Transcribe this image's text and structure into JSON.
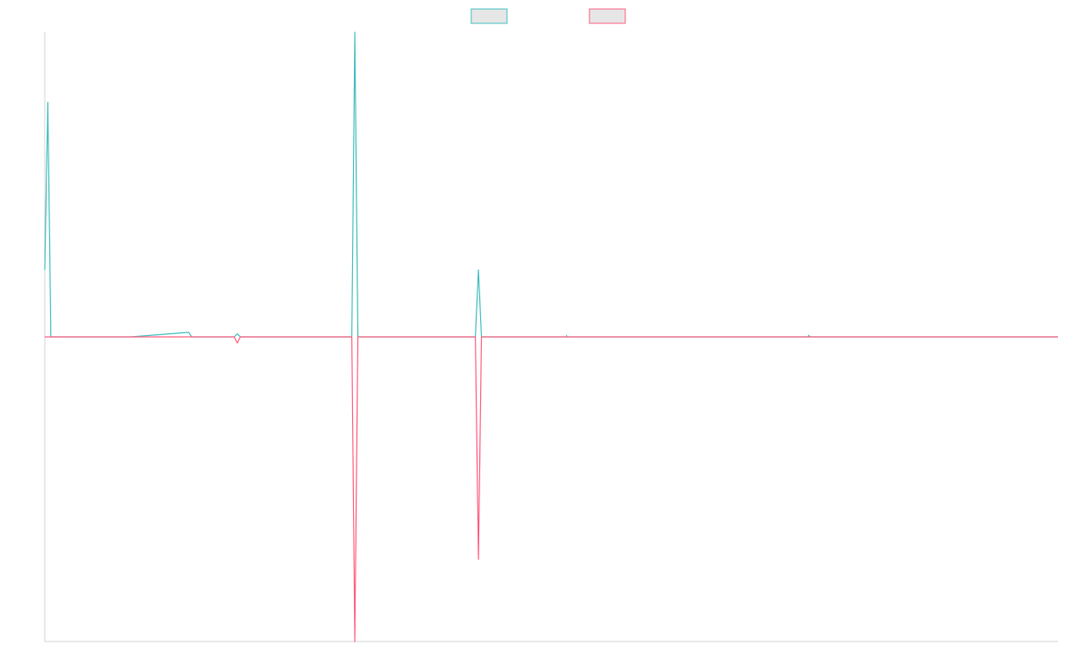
{
  "chart_data": {
    "type": "line",
    "title": "",
    "xlabel": "",
    "ylabel": "",
    "legend_position": "top-center",
    "grid": false,
    "axis_tick_labels_visible": false,
    "xlim": [
      0,
      100
    ],
    "ylim": [
      -100,
      100
    ],
    "series": [
      {
        "name": "",
        "color": "#4bc0c0",
        "fill": "#e6e6e6",
        "points": [
          [
            0,
            22
          ],
          [
            0.3,
            77
          ],
          [
            0.6,
            0
          ],
          [
            2.2,
            0
          ],
          [
            8.5,
            0
          ],
          [
            14.2,
            1.5
          ],
          [
            14.5,
            0
          ],
          [
            18.7,
            0
          ],
          [
            19.0,
            1
          ],
          [
            19.3,
            0
          ],
          [
            30.3,
            0
          ],
          [
            30.6,
            100
          ],
          [
            30.9,
            0
          ],
          [
            42.5,
            0
          ],
          [
            42.8,
            22
          ],
          [
            43.1,
            0
          ],
          [
            51.5,
            0
          ],
          [
            51.5,
            0.5
          ],
          [
            51.5,
            0
          ],
          [
            75.3,
            0
          ],
          [
            75.4,
            0.5
          ],
          [
            75.5,
            0
          ],
          [
            100,
            0
          ]
        ]
      },
      {
        "name": "",
        "color": "#ff6384",
        "fill": "#e6e6e6",
        "points": [
          [
            0,
            0
          ],
          [
            0.6,
            0
          ],
          [
            2.2,
            0
          ],
          [
            8.5,
            0
          ],
          [
            14.2,
            0
          ],
          [
            14.5,
            0
          ],
          [
            18.7,
            0
          ],
          [
            19.0,
            -2
          ],
          [
            19.3,
            0
          ],
          [
            30.3,
            0
          ],
          [
            30.6,
            -100
          ],
          [
            30.9,
            0
          ],
          [
            42.5,
            0
          ],
          [
            42.8,
            -73
          ],
          [
            43.1,
            0
          ],
          [
            51.5,
            0
          ],
          [
            75.3,
            0
          ],
          [
            100,
            0
          ]
        ]
      }
    ]
  }
}
